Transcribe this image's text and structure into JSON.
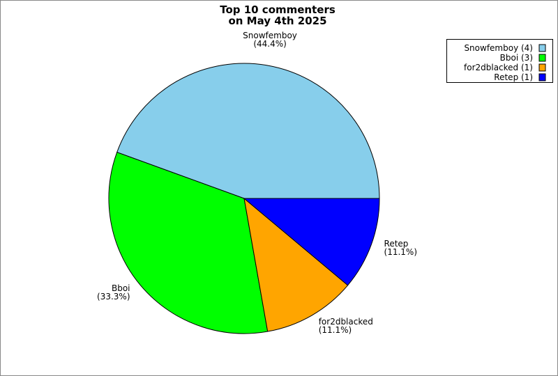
{
  "chart_data": {
    "type": "pie",
    "title": [
      "Top 10 commenters",
      "on May 4th 2025"
    ],
    "categories": [
      "Snowfemboy",
      "Bboi",
      "for2dblacked",
      "Retep"
    ],
    "values": [
      44.4,
      33.3,
      11.1,
      11.1
    ],
    "value_labels": [
      "(44.4%)",
      "(33.3%)",
      "(11.1%)",
      "(11.1%)"
    ],
    "colors": [
      "#87ceeb",
      "#00ff00",
      "#ffa500",
      "#0000ff"
    ],
    "legend_labels": [
      "Snowfemboy (4)",
      "Bboi (3)",
      "for2dblacked (1)",
      "Retep (1)"
    ],
    "legend_position": "upper right"
  }
}
